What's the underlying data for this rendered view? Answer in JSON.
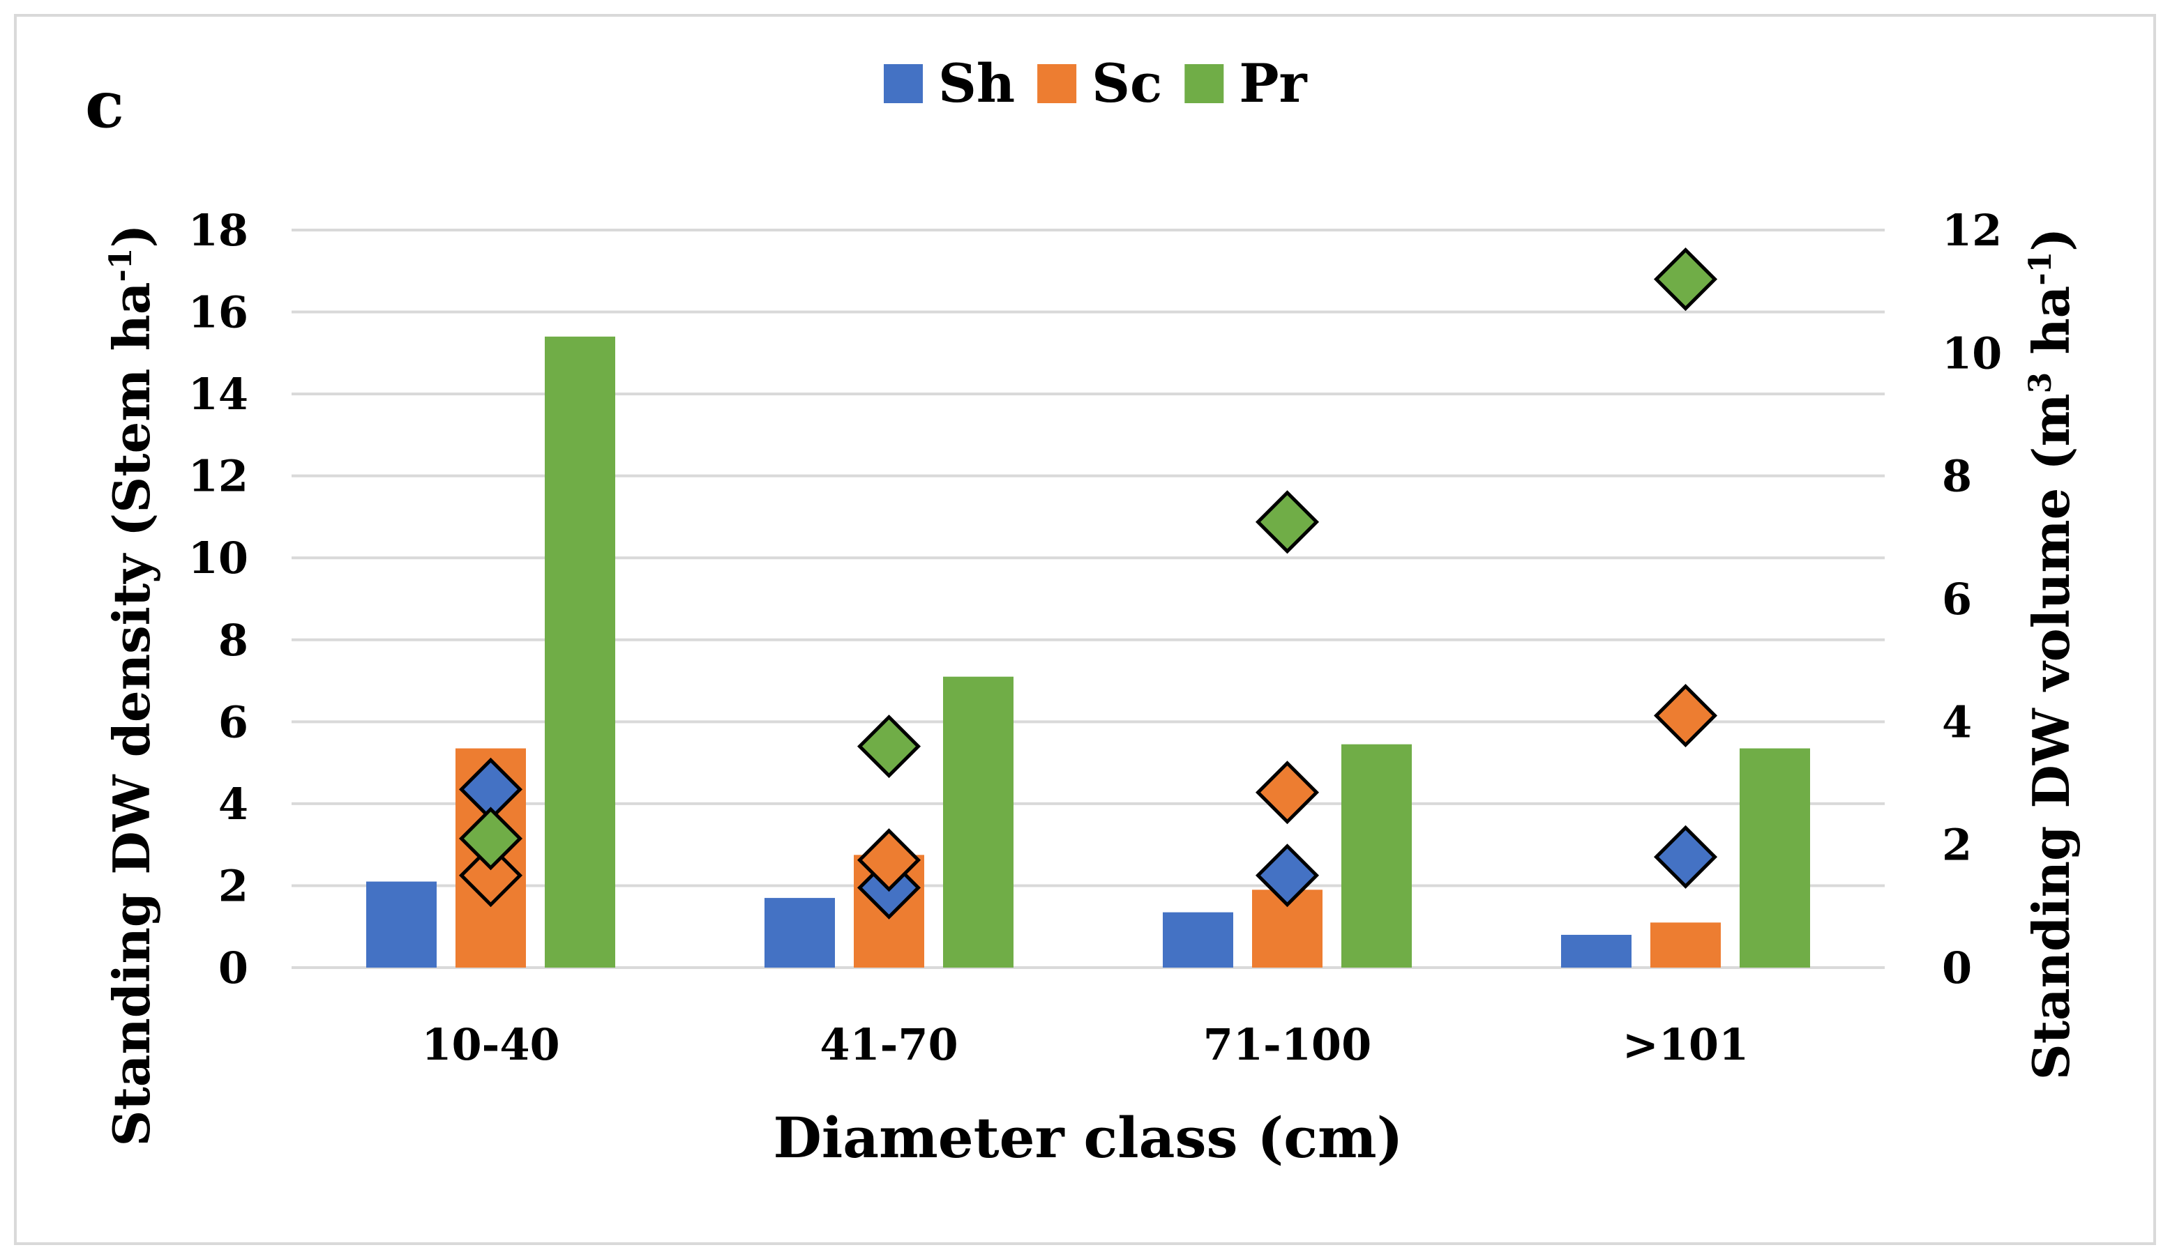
{
  "chart_data": {
    "type": "bar+scatter",
    "panel_label": "c",
    "categories": [
      "10-40",
      "41-70",
      "71-100",
      ">101"
    ],
    "xlabel": "Diameter class (cm)",
    "ylabel_left": "Standing DW density (Stem ha",
    "ylabel_left_sup": "-1",
    "ylabel_left_end": ")",
    "ylabel_right": "Standing DW volume (m",
    "ylabel_right_sup1": "3",
    "ylabel_right_mid": " ha",
    "ylabel_right_sup2": "-1",
    "ylabel_right_end": ")",
    "ylim_left": [
      0,
      18
    ],
    "yticks_left": [
      0,
      2,
      4,
      6,
      8,
      10,
      12,
      14,
      16,
      18
    ],
    "ylim_right": [
      0,
      12
    ],
    "yticks_right": [
      0,
      2,
      4,
      6,
      8,
      10,
      12
    ],
    "grid": true,
    "legend_position": "top-center",
    "bar_series": [
      {
        "name": "Sh",
        "color": "#4472C4",
        "values": [
          2.1,
          1.7,
          1.35,
          0.8
        ]
      },
      {
        "name": "Sc",
        "color": "#ED7D31",
        "values": [
          5.35,
          2.75,
          1.9,
          1.1
        ]
      },
      {
        "name": "Pr",
        "color": "#70AD47",
        "values": [
          15.4,
          7.1,
          5.45,
          5.35
        ]
      }
    ],
    "marker_series": [
      {
        "name": "Sh",
        "color": "#4472C4",
        "axis": "right",
        "values": [
          2.9,
          1.3,
          1.5,
          1.8
        ]
      },
      {
        "name": "Sc",
        "color": "#ED7D31",
        "axis": "right",
        "values": [
          1.5,
          1.75,
          2.85,
          4.1
        ]
      },
      {
        "name": "Pr",
        "color": "#70AD47",
        "axis": "right",
        "values": [
          2.1,
          3.6,
          7.25,
          11.2
        ]
      }
    ]
  }
}
